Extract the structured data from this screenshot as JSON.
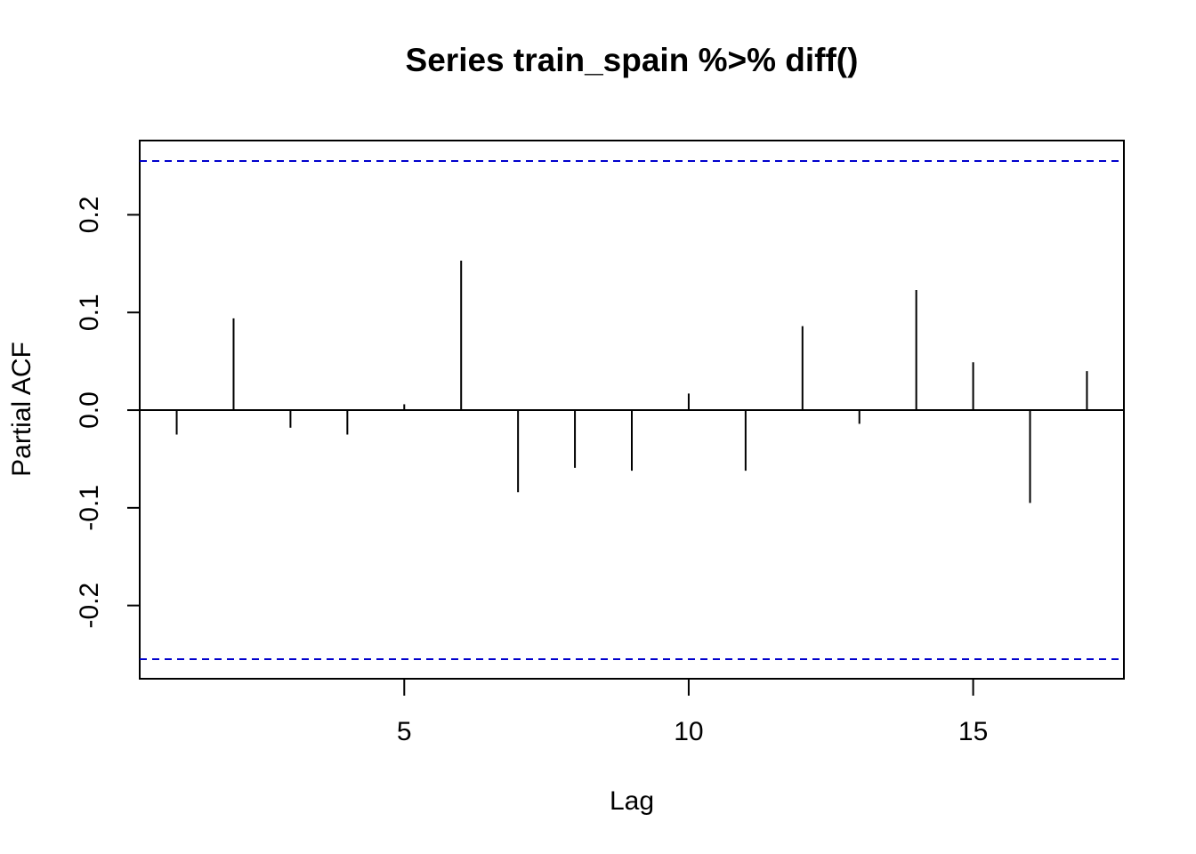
{
  "chart_data": {
    "type": "bar",
    "subtype": "pacf",
    "title": "Series  train_spain %>% diff()",
    "xlabel": "Lag",
    "ylabel": "Partial ACF",
    "xlim": [
      0.35,
      17.65
    ],
    "ylim": [
      -0.275,
      0.276
    ],
    "x_ticks": [
      5,
      10,
      15
    ],
    "y_ticks": [
      -0.2,
      -0.1,
      0.0,
      0.1,
      0.2
    ],
    "y_tick_labels": [
      "-0.2",
      "-0.1",
      "0.0",
      "0.1",
      "0.2"
    ],
    "lags": [
      1,
      2,
      3,
      4,
      5,
      6,
      7,
      8,
      9,
      10,
      11,
      12,
      13,
      14,
      15,
      16,
      17
    ],
    "values": [
      -0.025,
      0.094,
      -0.018,
      -0.025,
      0.006,
      0.153,
      -0.084,
      -0.059,
      -0.062,
      0.017,
      -0.062,
      0.086,
      -0.014,
      0.123,
      0.049,
      -0.095,
      0.04
    ],
    "confidence_bound": 0.255,
    "confidence_color": "#0000CD",
    "bar_color": "#000000",
    "grid": false,
    "legend": "none"
  }
}
